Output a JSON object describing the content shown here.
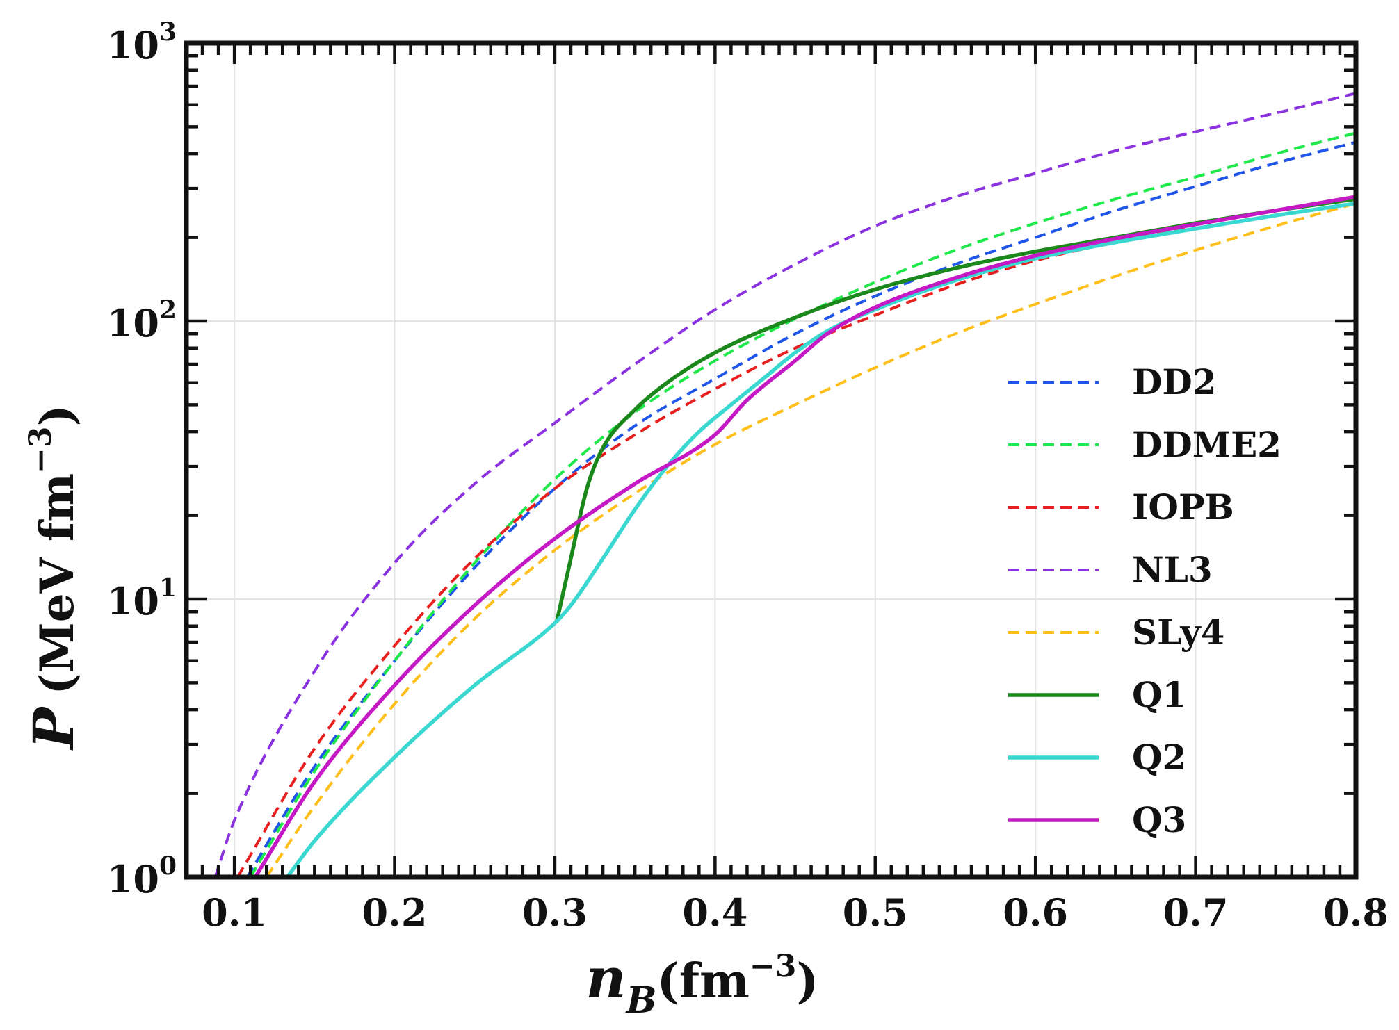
{
  "chart_data": {
    "type": "line",
    "title": "",
    "xlabel": {
      "var": "n",
      "sub": "B",
      "units": "(fm",
      "exp": "−3",
      "close": ")"
    },
    "ylabel": {
      "var": "P",
      "units": "(MeV fm",
      "exp": "−3",
      "close": ")"
    },
    "xlim": [
      0.07,
      0.8
    ],
    "ylim": [
      1,
      1000
    ],
    "yscale": "log",
    "grid": true,
    "legend_position": "right",
    "x_ticks": [
      0.1,
      0.2,
      0.3,
      0.4,
      0.5,
      0.6,
      0.7,
      0.8
    ],
    "x_tick_labels": [
      "0.1",
      "0.2",
      "0.3",
      "0.4",
      "0.5",
      "0.6",
      "0.7",
      "0.8"
    ],
    "y_ticks": [
      {
        "value": 1,
        "base": "10",
        "exp": "0"
      },
      {
        "value": 10,
        "base": "10",
        "exp": "1"
      },
      {
        "value": 100,
        "base": "10",
        "exp": "2"
      },
      {
        "value": 1000,
        "base": "10",
        "exp": "3"
      }
    ],
    "series": [
      {
        "name": "DD2",
        "color": "#1f55e8",
        "dash": true,
        "x": [
          0.108,
          0.15,
          0.2,
          0.25,
          0.3,
          0.35,
          0.4,
          0.45,
          0.5,
          0.55,
          0.6,
          0.65,
          0.7,
          0.75,
          0.8
        ],
        "y": [
          1.0,
          2.5,
          6.0,
          13.0,
          25.0,
          42.0,
          62.0,
          90.0,
          123.0,
          160.0,
          200.0,
          250.0,
          305.0,
          370.0,
          440.0
        ]
      },
      {
        "name": "DDME2",
        "color": "#1fe84a",
        "dash": true,
        "x": [
          0.11,
          0.15,
          0.2,
          0.25,
          0.3,
          0.35,
          0.4,
          0.45,
          0.5,
          0.55,
          0.6,
          0.65,
          0.7,
          0.75,
          0.8
        ],
        "y": [
          1.0,
          2.4,
          6.0,
          13.5,
          27.0,
          47.0,
          72.0,
          102.0,
          138.0,
          180.0,
          225.0,
          275.0,
          330.0,
          400.0,
          475.0
        ]
      },
      {
        "name": "IOPB",
        "color": "#e81f1f",
        "dash": true,
        "x": [
          0.102,
          0.15,
          0.2,
          0.25,
          0.3,
          0.35,
          0.4,
          0.45,
          0.5,
          0.55,
          0.6,
          0.65,
          0.7,
          0.75,
          0.8
        ],
        "y": [
          1.0,
          2.9,
          6.8,
          14.0,
          25.0,
          39.0,
          57.0,
          80.0,
          105.0,
          135.0,
          165.0,
          193.0,
          222.0,
          250.0,
          275.0
        ]
      },
      {
        "name": "NL3",
        "color": "#8a32e0",
        "dash": true,
        "x": [
          0.088,
          0.1,
          0.15,
          0.2,
          0.25,
          0.3,
          0.35,
          0.4,
          0.45,
          0.5,
          0.55,
          0.6,
          0.65,
          0.7,
          0.75,
          0.8
        ],
        "y": [
          1.0,
          1.6,
          5.5,
          13.5,
          26.0,
          43.0,
          70.0,
          110.0,
          160.0,
          220.0,
          280.0,
          340.0,
          410.0,
          480.0,
          560.0,
          660.0
        ]
      },
      {
        "name": "SLy4",
        "color": "#ffbf1a",
        "dash": true,
        "x": [
          0.12,
          0.15,
          0.2,
          0.25,
          0.3,
          0.35,
          0.4,
          0.45,
          0.5,
          0.55,
          0.6,
          0.65,
          0.7,
          0.75,
          0.8
        ],
        "y": [
          1.0,
          1.8,
          4.2,
          8.5,
          15.0,
          24.0,
          36.0,
          50.0,
          68.0,
          90.0,
          115.0,
          145.0,
          180.0,
          220.0,
          265.0
        ]
      },
      {
        "name": "Q1",
        "color": "#1a881a",
        "dash": false,
        "x": [
          0.301,
          0.31,
          0.32,
          0.33,
          0.35,
          0.37,
          0.4,
          0.45,
          0.5,
          0.55,
          0.6,
          0.65,
          0.7,
          0.75,
          0.8
        ],
        "y": [
          8.2,
          14.0,
          25.0,
          35.0,
          48.0,
          60.0,
          77.0,
          103.0,
          130.0,
          155.0,
          178.0,
          200.0,
          225.0,
          250.0,
          275.0
        ]
      },
      {
        "name": "Q2",
        "color": "#3ad8d0",
        "dash": false,
        "x": [
          0.133,
          0.15,
          0.2,
          0.25,
          0.3,
          0.31,
          0.33,
          0.35,
          0.37,
          0.39,
          0.41,
          0.43,
          0.45,
          0.47,
          0.5,
          0.55,
          0.6,
          0.65,
          0.7,
          0.75,
          0.8
        ],
        "y": [
          1.0,
          1.35,
          2.7,
          4.9,
          8.2,
          9.5,
          14.0,
          21.0,
          30.0,
          40.0,
          50.0,
          62.0,
          77.0,
          92.0,
          110.0,
          140.0,
          168.0,
          192.0,
          215.0,
          240.0,
          265.0
        ]
      },
      {
        "name": "Q3",
        "color": "#c419c4",
        "dash": false,
        "x": [
          0.113,
          0.15,
          0.2,
          0.25,
          0.3,
          0.35,
          0.4,
          0.42,
          0.45,
          0.47,
          0.5,
          0.55,
          0.6,
          0.65,
          0.7,
          0.75,
          0.8
        ],
        "y": [
          1.0,
          2.2,
          4.9,
          9.5,
          16.5,
          26.0,
          39.0,
          52.0,
          72.0,
          90.0,
          112.0,
          143.0,
          172.0,
          198.0,
          223.0,
          250.0,
          280.0
        ]
      }
    ]
  }
}
